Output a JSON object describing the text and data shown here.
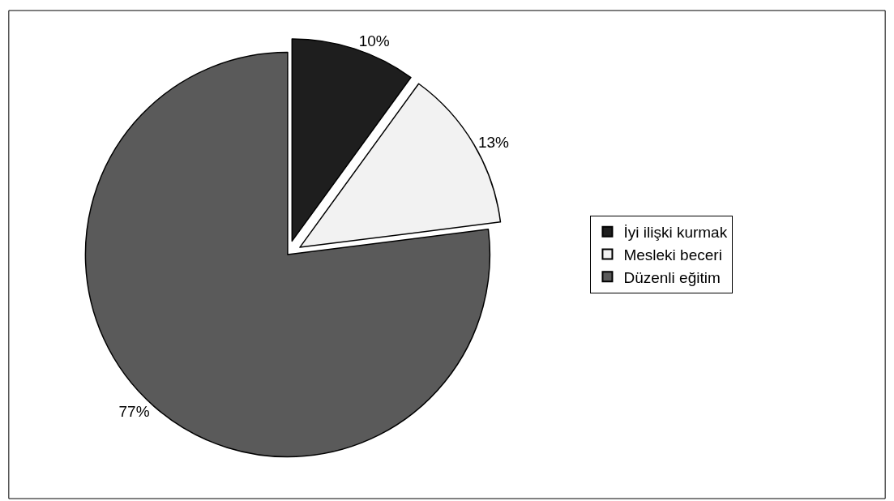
{
  "chart_data": {
    "type": "pie",
    "categories": [
      "İyi ilişki kurmak",
      "Mesleki beceri",
      "Düzenli eğitim"
    ],
    "values": [
      10,
      13,
      77
    ],
    "colors": [
      "#1e1e1e",
      "#f2f2f2",
      "#5a5a5a"
    ],
    "value_labels": [
      "10%",
      "13%",
      "77%"
    ],
    "legend": "right"
  }
}
